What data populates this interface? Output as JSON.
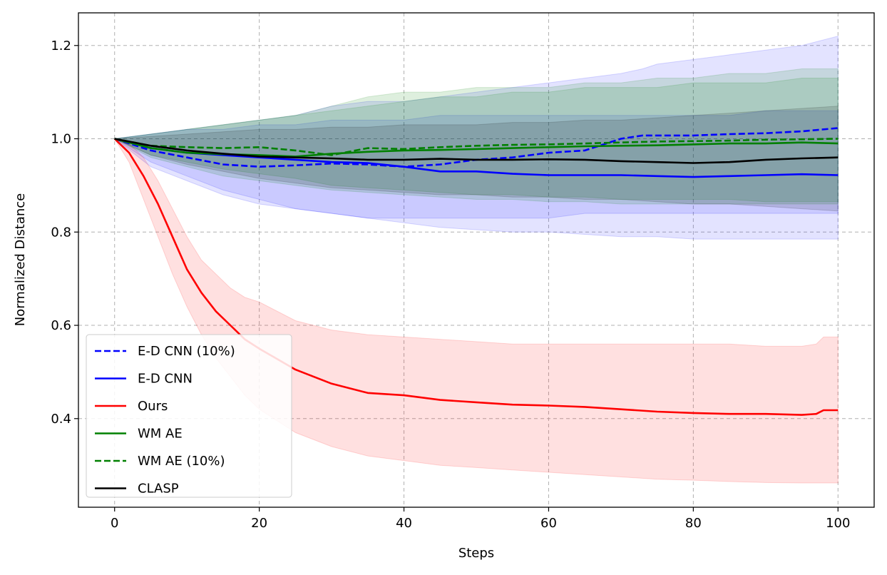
{
  "chart_data": {
    "type": "line",
    "title": "",
    "xlabel": "Steps",
    "ylabel": "Normalized Distance",
    "xlim": [
      -5,
      105
    ],
    "ylim": [
      0.21,
      1.27
    ],
    "xticks": [
      0,
      20,
      40,
      60,
      80,
      100
    ],
    "yticks": [
      0.4,
      0.6,
      0.8,
      1.0,
      1.2
    ],
    "xtick_labels": [
      "0",
      "20",
      "40",
      "60",
      "80",
      "100"
    ],
    "ytick_labels": [
      "0.4",
      "0.6",
      "0.8",
      "1.0",
      "1.2"
    ],
    "grid": true,
    "legend_position": "lower-left",
    "series": [
      {
        "name": "E-D CNN  (10%)",
        "color": "#0000ff",
        "dash": "dashed",
        "x": [
          0,
          5,
          10,
          15,
          20,
          25,
          30,
          35,
          40,
          45,
          50,
          55,
          60,
          65,
          70,
          73,
          75,
          80,
          85,
          90,
          95,
          100
        ],
        "y": [
          1.0,
          0.975,
          0.96,
          0.945,
          0.94,
          0.943,
          0.947,
          0.945,
          0.94,
          0.945,
          0.955,
          0.96,
          0.97,
          0.975,
          1.0,
          1.007,
          1.007,
          1.007,
          1.01,
          1.012,
          1.016,
          1.023
        ],
        "band_upper": [
          1.0,
          1.01,
          1.02,
          1.03,
          1.04,
          1.05,
          1.07,
          1.08,
          1.08,
          1.09,
          1.1,
          1.11,
          1.12,
          1.13,
          1.14,
          1.15,
          1.16,
          1.17,
          1.18,
          1.19,
          1.2,
          1.22
        ],
        "band_lower": [
          1.0,
          0.94,
          0.91,
          0.88,
          0.86,
          0.85,
          0.84,
          0.83,
          0.83,
          0.83,
          0.83,
          0.83,
          0.83,
          0.84,
          0.84,
          0.84,
          0.84,
          0.84,
          0.84,
          0.84,
          0.84,
          0.84
        ]
      },
      {
        "name": "E-D CNN",
        "color": "#0000ff",
        "dash": "solid",
        "x": [
          0,
          5,
          10,
          15,
          20,
          25,
          30,
          35,
          40,
          45,
          50,
          55,
          60,
          65,
          70,
          75,
          80,
          85,
          90,
          95,
          100
        ],
        "y": [
          1.0,
          0.98,
          0.97,
          0.965,
          0.96,
          0.955,
          0.95,
          0.948,
          0.94,
          0.93,
          0.93,
          0.925,
          0.922,
          0.922,
          0.922,
          0.92,
          0.918,
          0.92,
          0.922,
          0.924,
          0.922
        ],
        "band_upper": [
          1.0,
          1.01,
          1.02,
          1.02,
          1.03,
          1.03,
          1.04,
          1.04,
          1.04,
          1.05,
          1.05,
          1.05,
          1.05,
          1.05,
          1.05,
          1.05,
          1.05,
          1.05,
          1.06,
          1.06,
          1.06
        ],
        "band_lower": [
          1.0,
          0.95,
          0.92,
          0.89,
          0.87,
          0.85,
          0.84,
          0.83,
          0.82,
          0.81,
          0.805,
          0.8,
          0.8,
          0.795,
          0.79,
          0.79,
          0.785,
          0.785,
          0.785,
          0.785,
          0.785
        ]
      },
      {
        "name": "Ours",
        "color": "#ff0000",
        "dash": "solid",
        "x": [
          0,
          2,
          4,
          6,
          8,
          10,
          12,
          14,
          16,
          18,
          20,
          25,
          30,
          35,
          40,
          45,
          50,
          55,
          60,
          65,
          70,
          75,
          80,
          85,
          90,
          95,
          97,
          98,
          100
        ],
        "y": [
          1.0,
          0.97,
          0.92,
          0.86,
          0.79,
          0.72,
          0.67,
          0.63,
          0.6,
          0.57,
          0.55,
          0.505,
          0.475,
          0.455,
          0.45,
          0.44,
          0.435,
          0.43,
          0.428,
          0.425,
          0.42,
          0.415,
          0.412,
          0.41,
          0.41,
          0.408,
          0.41,
          0.418,
          0.418
        ],
        "band_upper": [
          1.0,
          0.99,
          0.96,
          0.91,
          0.85,
          0.79,
          0.74,
          0.71,
          0.68,
          0.66,
          0.65,
          0.61,
          0.59,
          0.58,
          0.575,
          0.57,
          0.565,
          0.56,
          0.56,
          0.56,
          0.56,
          0.56,
          0.56,
          0.56,
          0.555,
          0.555,
          0.56,
          0.575,
          0.575
        ],
        "band_lower": [
          1.0,
          0.95,
          0.87,
          0.79,
          0.71,
          0.64,
          0.58,
          0.53,
          0.49,
          0.45,
          0.42,
          0.37,
          0.34,
          0.32,
          0.31,
          0.3,
          0.295,
          0.29,
          0.285,
          0.28,
          0.275,
          0.27,
          0.268,
          0.265,
          0.263,
          0.262,
          0.262,
          0.262,
          0.262
        ]
      },
      {
        "name": "WM AE",
        "color": "#008000",
        "dash": "solid",
        "x": [
          0,
          5,
          10,
          15,
          20,
          25,
          30,
          35,
          40,
          45,
          50,
          55,
          60,
          65,
          70,
          75,
          80,
          85,
          90,
          95,
          100
        ],
        "y": [
          1.0,
          0.98,
          0.97,
          0.967,
          0.965,
          0.962,
          0.968,
          0.972,
          0.975,
          0.976,
          0.978,
          0.98,
          0.982,
          0.984,
          0.985,
          0.986,
          0.988,
          0.99,
          0.99,
          0.992,
          0.99
        ],
        "band_upper": [
          1.0,
          1.01,
          1.02,
          1.03,
          1.04,
          1.05,
          1.06,
          1.07,
          1.08,
          1.09,
          1.09,
          1.1,
          1.1,
          1.11,
          1.11,
          1.11,
          1.12,
          1.12,
          1.12,
          1.13,
          1.13
        ],
        "band_lower": [
          1.0,
          0.96,
          0.94,
          0.92,
          0.91,
          0.9,
          0.89,
          0.885,
          0.88,
          0.875,
          0.87,
          0.87,
          0.865,
          0.865,
          0.86,
          0.86,
          0.86,
          0.86,
          0.86,
          0.86,
          0.86
        ]
      },
      {
        "name": "WM AE  (10%)",
        "color": "#008000",
        "dash": "dashed",
        "x": [
          0,
          5,
          10,
          15,
          20,
          25,
          30,
          35,
          40,
          45,
          50,
          55,
          60,
          65,
          70,
          75,
          80,
          85,
          90,
          95,
          100
        ],
        "y": [
          1.0,
          0.985,
          0.982,
          0.98,
          0.982,
          0.975,
          0.965,
          0.98,
          0.978,
          0.982,
          0.985,
          0.987,
          0.988,
          0.99,
          0.992,
          0.994,
          0.995,
          0.996,
          0.998,
          0.999,
          1.0
        ],
        "band_upper": [
          1.0,
          1.01,
          1.02,
          1.03,
          1.04,
          1.05,
          1.07,
          1.09,
          1.1,
          1.1,
          1.11,
          1.11,
          1.11,
          1.12,
          1.12,
          1.13,
          1.13,
          1.14,
          1.14,
          1.15,
          1.15
        ],
        "band_lower": [
          1.0,
          0.965,
          0.95,
          0.935,
          0.925,
          0.915,
          0.9,
          0.895,
          0.89,
          0.885,
          0.88,
          0.88,
          0.875,
          0.875,
          0.87,
          0.87,
          0.87,
          0.87,
          0.865,
          0.865,
          0.865
        ]
      },
      {
        "name": "CLASP",
        "color": "#000000",
        "dash": "solid",
        "x": [
          0,
          5,
          10,
          15,
          20,
          25,
          30,
          35,
          40,
          45,
          50,
          55,
          60,
          65,
          70,
          75,
          80,
          85,
          90,
          95,
          100
        ],
        "y": [
          1.0,
          0.985,
          0.975,
          0.968,
          0.962,
          0.96,
          0.958,
          0.955,
          0.955,
          0.957,
          0.955,
          0.955,
          0.956,
          0.955,
          0.952,
          0.95,
          0.948,
          0.95,
          0.955,
          0.958,
          0.96
        ],
        "band_upper": [
          1.0,
          1.005,
          1.01,
          1.015,
          1.02,
          1.02,
          1.025,
          1.025,
          1.03,
          1.03,
          1.03,
          1.035,
          1.035,
          1.04,
          1.04,
          1.045,
          1.05,
          1.055,
          1.06,
          1.065,
          1.07
        ],
        "band_lower": [
          1.0,
          0.965,
          0.945,
          0.93,
          0.915,
          0.905,
          0.895,
          0.89,
          0.885,
          0.88,
          0.88,
          0.875,
          0.875,
          0.87,
          0.87,
          0.865,
          0.86,
          0.86,
          0.855,
          0.85,
          0.845
        ]
      }
    ]
  }
}
